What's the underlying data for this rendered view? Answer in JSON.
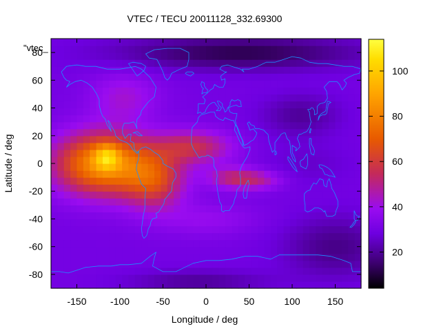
{
  "chart_data": {
    "type": "heatmap",
    "title": "VTEC / TECU 20011128_332.69300",
    "key_label": "\"vtec_",
    "xlabel": "Longitude / deg",
    "ylabel": "Latitude / deg",
    "xlim": [
      -180,
      180
    ],
    "ylim": [
      -90,
      90
    ],
    "x_ticks": [
      {
        "value": -150,
        "label": "-150"
      },
      {
        "value": -100,
        "label": "-100"
      },
      {
        "value": -50,
        "label": "-50"
      },
      {
        "value": 0,
        "label": "0"
      },
      {
        "value": 50,
        "label": "50"
      },
      {
        "value": 100,
        "label": "100"
      },
      {
        "value": 150,
        "label": "150"
      }
    ],
    "y_ticks": [
      {
        "value": 80,
        "label": "80"
      },
      {
        "value": 60,
        "label": "60"
      },
      {
        "value": 40,
        "label": "40"
      },
      {
        "value": 20,
        "label": "20"
      },
      {
        "value": 0,
        "label": "0"
      },
      {
        "value": -20,
        "label": "-20"
      },
      {
        "value": -40,
        "label": "-40"
      },
      {
        "value": -60,
        "label": "-60"
      },
      {
        "value": -80,
        "label": "-80"
      }
    ],
    "colorbar": {
      "range": [
        4,
        114
      ],
      "ticks": [
        {
          "value": 20,
          "label": "20"
        },
        {
          "value": 40,
          "label": "40"
        },
        {
          "value": 60,
          "label": "60"
        },
        {
          "value": 80,
          "label": "80"
        },
        {
          "value": 100,
          "label": "100"
        }
      ],
      "palette": [
        "#000000",
        "#3c006e",
        "#6e00e0",
        "#9a0cf0",
        "#c42a5a",
        "#e85a00",
        "#ffa400",
        "#ffdd00",
        "#ffff40"
      ]
    },
    "grid": {
      "lon_step": 7.5,
      "lat_step": 5,
      "field": "approximate VTEC (TECU) per cell from the equatorial-anomaly enhancement over the Pacific / Americas / Atlantic / Africa and lower values at high latitudes and on the night side",
      "peak_value": 114,
      "peak_location": {
        "lon": -115,
        "lat": 5
      }
    },
    "overlay": "coastlines",
    "coastline_color": "#1e90ff"
  }
}
